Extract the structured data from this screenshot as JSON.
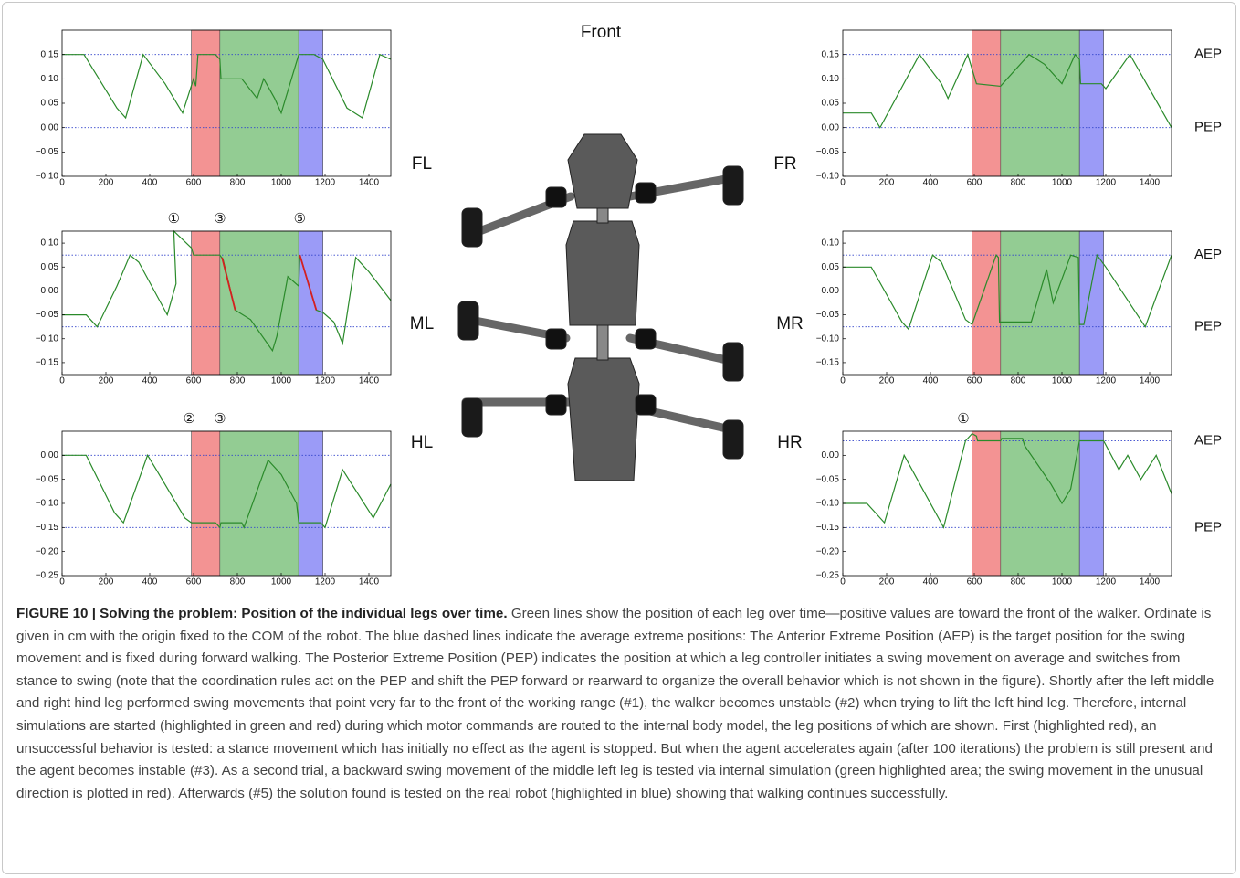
{
  "figure": {
    "heading": "Front"
  },
  "chart_data": [
    {
      "type": "line",
      "label": "FL",
      "xlim": [
        0,
        1500
      ],
      "xticks": [
        0,
        200,
        400,
        600,
        800,
        1000,
        1200,
        1400
      ],
      "ylim": [
        -0.1,
        0.2
      ],
      "yticks": [
        {
          "value": -0.1,
          "label": "−0.10"
        },
        {
          "value": -0.05,
          "label": "−0.05"
        },
        {
          "value": 0,
          "label": "0.00"
        },
        {
          "value": 0.05,
          "label": "0.05"
        },
        {
          "value": 0.1,
          "label": "0.10"
        },
        {
          "value": 0.15,
          "label": "0.15"
        }
      ],
      "spans": [
        {
          "x": [
            590,
            720
          ],
          "color": "#f39393"
        },
        {
          "x": [
            720,
            1080
          ],
          "color": "#93cc93"
        },
        {
          "x": [
            1080,
            1190
          ],
          "color": "#9b9bf7"
        }
      ],
      "reference_lines": [
        {
          "value": 0.15
        },
        {
          "value": 0
        }
      ],
      "series": [
        {
          "color": "#2a8a2a",
          "x": [
            0,
            100,
            250,
            290,
            370,
            470,
            550,
            600,
            610,
            620,
            700,
            720,
            725,
            820,
            890,
            920,
            970,
            1000,
            1080,
            1150,
            1190,
            1300,
            1370,
            1450,
            1500
          ],
          "values": [
            0.15,
            0.15,
            0.04,
            0.02,
            0.15,
            0.09,
            0.03,
            0.1,
            0.085,
            0.15,
            0.15,
            0.14,
            0.1,
            0.1,
            0.06,
            0.1,
            0.06,
            0.03,
            0.15,
            0.15,
            0.14,
            0.04,
            0.02,
            0.15,
            0.14
          ]
        }
      ],
      "annotations": []
    },
    {
      "type": "line",
      "label": "FR",
      "xlim": [
        0,
        1500
      ],
      "xticks": [
        0,
        200,
        400,
        600,
        800,
        1000,
        1200,
        1400
      ],
      "ylim": [
        -0.1,
        0.2
      ],
      "yticks": [
        {
          "value": -0.1,
          "label": "−0.10"
        },
        {
          "value": -0.05,
          "label": "−0.05"
        },
        {
          "value": 0,
          "label": "0.00"
        },
        {
          "value": 0.05,
          "label": "0.05"
        },
        {
          "value": 0.1,
          "label": "0.10"
        },
        {
          "value": 0.15,
          "label": "0.15"
        }
      ],
      "spans": [
        {
          "x": [
            590,
            720
          ],
          "color": "#f39393"
        },
        {
          "x": [
            720,
            1080
          ],
          "color": "#93cc93"
        },
        {
          "x": [
            1080,
            1190
          ],
          "color": "#9b9bf7"
        }
      ],
      "reference_lines": [
        {
          "value": 0.15,
          "label": "AEP"
        },
        {
          "value": 0,
          "label": "PEP"
        }
      ],
      "series": [
        {
          "color": "#2a8a2a",
          "x": [
            0,
            130,
            170,
            350,
            450,
            480,
            570,
            610,
            715,
            720,
            850,
            920,
            1000,
            1060,
            1080,
            1085,
            1180,
            1200,
            1310,
            1500
          ],
          "values": [
            0.03,
            0.03,
            0,
            0.15,
            0.09,
            0.06,
            0.15,
            0.09,
            0.085,
            0.085,
            0.15,
            0.13,
            0.09,
            0.15,
            0.14,
            0.09,
            0.09,
            0.08,
            0.15,
            0
          ]
        }
      ],
      "annotations": []
    },
    {
      "type": "line",
      "label": "ML",
      "xlim": [
        0,
        1500
      ],
      "xticks": [
        0,
        200,
        400,
        600,
        800,
        1000,
        1200,
        1400
      ],
      "ylim": [
        -0.175,
        0.125
      ],
      "yticks": [
        {
          "value": -0.15,
          "label": "−0.15"
        },
        {
          "value": -0.1,
          "label": "−0.10"
        },
        {
          "value": -0.05,
          "label": "−0.05"
        },
        {
          "value": 0,
          "label": "0.00"
        },
        {
          "value": 0.05,
          "label": "0.05"
        },
        {
          "value": 0.1,
          "label": "0.10"
        }
      ],
      "spans": [
        {
          "x": [
            590,
            720
          ],
          "color": "#f39393"
        },
        {
          "x": [
            720,
            1080
          ],
          "color": "#93cc93"
        },
        {
          "x": [
            1080,
            1190
          ],
          "color": "#9b9bf7"
        }
      ],
      "reference_lines": [
        {
          "value": 0.075
        },
        {
          "value": -0.075
        }
      ],
      "series": [
        {
          "color": "#2a8a2a",
          "x": [
            0,
            110,
            160,
            250,
            310,
            350,
            480,
            520,
            510,
            590,
            600,
            720,
            735,
            790,
            860,
            960,
            980,
            1030,
            1080,
            1085,
            1160,
            1190,
            1240,
            1280,
            1340,
            1400,
            1500
          ],
          "values": [
            -0.05,
            -0.05,
            -0.075,
            0.01,
            0.075,
            0.06,
            -0.05,
            0.015,
            0.125,
            0.09,
            0.075,
            0.075,
            0.065,
            -0.04,
            -0.06,
            -0.125,
            -0.095,
            0.03,
            0.01,
            0.075,
            -0.04,
            -0.045,
            -0.065,
            -0.11,
            0.07,
            0.04,
            -0.02
          ]
        },
        {
          "color": "#d42020",
          "x": [
            730,
            790
          ],
          "values": [
            0.07,
            -0.04
          ]
        },
        {
          "color": "#d42020",
          "x": [
            1085,
            1160
          ],
          "values": [
            0.075,
            -0.04
          ]
        }
      ],
      "annotations": [
        {
          "text": "①",
          "x": 510
        },
        {
          "text": "③",
          "x": 720
        },
        {
          "text": "⑤",
          "x": 1085
        }
      ]
    },
    {
      "type": "line",
      "label": "MR",
      "xlim": [
        0,
        1500
      ],
      "xticks": [
        0,
        200,
        400,
        600,
        800,
        1000,
        1200,
        1400
      ],
      "ylim": [
        -0.175,
        0.125
      ],
      "yticks": [
        {
          "value": -0.15,
          "label": "−0.15"
        },
        {
          "value": -0.1,
          "label": "−0.10"
        },
        {
          "value": -0.05,
          "label": "−0.05"
        },
        {
          "value": 0,
          "label": "0.00"
        },
        {
          "value": 0.05,
          "label": "0.05"
        },
        {
          "value": 0.1,
          "label": "0.10"
        }
      ],
      "spans": [
        {
          "x": [
            590,
            720
          ],
          "color": "#f39393"
        },
        {
          "x": [
            720,
            1080
          ],
          "color": "#93cc93"
        },
        {
          "x": [
            1080,
            1190
          ],
          "color": "#9b9bf7"
        }
      ],
      "reference_lines": [
        {
          "value": 0.075,
          "label": "AEP"
        },
        {
          "value": -0.075,
          "label": "PEP"
        }
      ],
      "series": [
        {
          "color": "#2a8a2a",
          "x": [
            0,
            130,
            270,
            300,
            410,
            450,
            560,
            590,
            700,
            710,
            715,
            860,
            930,
            960,
            1040,
            1075,
            1080,
            1100,
            1160,
            1200,
            1380,
            1500
          ],
          "values": [
            0.05,
            0.05,
            -0.065,
            -0.08,
            0.075,
            0.06,
            -0.06,
            -0.07,
            0.075,
            0.07,
            -0.065,
            -0.065,
            0.045,
            -0.025,
            0.075,
            0.07,
            -0.07,
            -0.07,
            0.075,
            0.05,
            -0.075,
            0.075
          ]
        }
      ],
      "annotations": []
    },
    {
      "type": "line",
      "label": "HL",
      "xlim": [
        0,
        1500
      ],
      "xticks": [
        0,
        200,
        400,
        600,
        800,
        1000,
        1200,
        1400
      ],
      "ylim": [
        -0.25,
        0.05
      ],
      "yticks": [
        {
          "value": -0.25,
          "label": "−0.25"
        },
        {
          "value": -0.2,
          "label": "−0.20"
        },
        {
          "value": -0.15,
          "label": "−0.15"
        },
        {
          "value": -0.1,
          "label": "−0.10"
        },
        {
          "value": -0.05,
          "label": "−0.05"
        },
        {
          "value": 0,
          "label": "0.00"
        }
      ],
      "spans": [
        {
          "x": [
            590,
            720
          ],
          "color": "#f39393"
        },
        {
          "x": [
            720,
            1080
          ],
          "color": "#93cc93"
        },
        {
          "x": [
            1080,
            1190
          ],
          "color": "#9b9bf7"
        }
      ],
      "reference_lines": [
        {
          "value": 0
        },
        {
          "value": -0.15
        }
      ],
      "series": [
        {
          "color": "#2a8a2a",
          "x": [
            0,
            110,
            240,
            280,
            390,
            430,
            560,
            590,
            700,
            720,
            725,
            820,
            830,
            940,
            1000,
            1070,
            1080,
            1180,
            1200,
            1280,
            1420,
            1500
          ],
          "values": [
            0,
            0,
            -0.12,
            -0.14,
            0,
            -0.03,
            -0.13,
            -0.14,
            -0.14,
            -0.15,
            -0.14,
            -0.14,
            -0.15,
            -0.01,
            -0.04,
            -0.1,
            -0.14,
            -0.14,
            -0.15,
            -0.03,
            -0.13,
            -0.06
          ]
        }
      ],
      "annotations": [
        {
          "text": "②",
          "x": 580
        },
        {
          "text": "③",
          "x": 720
        }
      ]
    },
    {
      "type": "line",
      "label": "HR",
      "xlim": [
        0,
        1500
      ],
      "xticks": [
        0,
        200,
        400,
        600,
        800,
        1000,
        1200,
        1400
      ],
      "ylim": [
        -0.25,
        0.05
      ],
      "yticks": [
        {
          "value": -0.25,
          "label": "−0.25"
        },
        {
          "value": -0.2,
          "label": "−0.20"
        },
        {
          "value": -0.15,
          "label": "−0.15"
        },
        {
          "value": -0.1,
          "label": "−0.10"
        },
        {
          "value": -0.05,
          "label": "−0.05"
        },
        {
          "value": 0,
          "label": "0.00"
        }
      ],
      "spans": [
        {
          "x": [
            590,
            720
          ],
          "color": "#f39393"
        },
        {
          "x": [
            720,
            1080
          ],
          "color": "#93cc93"
        },
        {
          "x": [
            1080,
            1190
          ],
          "color": "#9b9bf7"
        }
      ],
      "reference_lines": [
        {
          "value": 0.03,
          "label": "AEP"
        },
        {
          "value": -0.15,
          "label": "PEP"
        }
      ],
      "series": [
        {
          "color": "#2a8a2a",
          "x": [
            0,
            110,
            150,
            190,
            280,
            340,
            460,
            560,
            590,
            610,
            615,
            720,
            725,
            820,
            830,
            950,
            1000,
            1040,
            1080,
            1190,
            1260,
            1300,
            1360,
            1430,
            1500
          ],
          "values": [
            -0.1,
            -0.1,
            -0.12,
            -0.14,
            0,
            -0.05,
            -0.15,
            0.03,
            0.045,
            0.04,
            0.03,
            0.03,
            0.035,
            0.035,
            0.02,
            -0.06,
            -0.1,
            -0.07,
            0.03,
            0.03,
            -0.03,
            0,
            -0.05,
            0,
            -0.08
          ]
        }
      ],
      "annotations": [
        {
          "text": "①",
          "x": 550
        }
      ]
    }
  ],
  "caption": {
    "title": "FIGURE 10 | Solving the problem: Position of the individual legs over time.",
    "text": "Green lines show the position of each leg over time—positive values are toward the front of the walker. Ordinate is given in cm with the origin fixed to the COM of the robot. The blue dashed lines indicate the average extreme positions: The Anterior Extreme Position (AEP) is the target position for the swing movement and is fixed during forward walking. The Posterior Extreme Position (PEP) indicates the position at which a leg controller initiates a swing movement on average and switches from stance to swing (note that the coordination rules act on the PEP and shift the PEP forward or rearward to organize the overall behavior which is not shown in the figure). Shortly after the left middle and right hind leg performed swing movements that point very far to the front of the working range (#1), the walker becomes unstable (#2) when trying to lift the left hind leg. Therefore, internal simulations are started (highlighted in green and red) during which motor commands are routed to the internal body model, the leg positions of which are shown. First (highlighted red), an unsuccessful behavior is tested: a stance movement which has initially no effect as the agent is stopped. But when the agent accelerates again (after 100 iterations) the problem is still present and the agent becomes instable (#3). As a second trial, a backward swing movement of the middle left leg is tested via internal simulation (green highlighted area; the swing movement in the unusual direction is plotted in red). Afterwards (#5) the solution found is tested on the real robot (highlighted in blue) showing that walking continues successfully."
  }
}
